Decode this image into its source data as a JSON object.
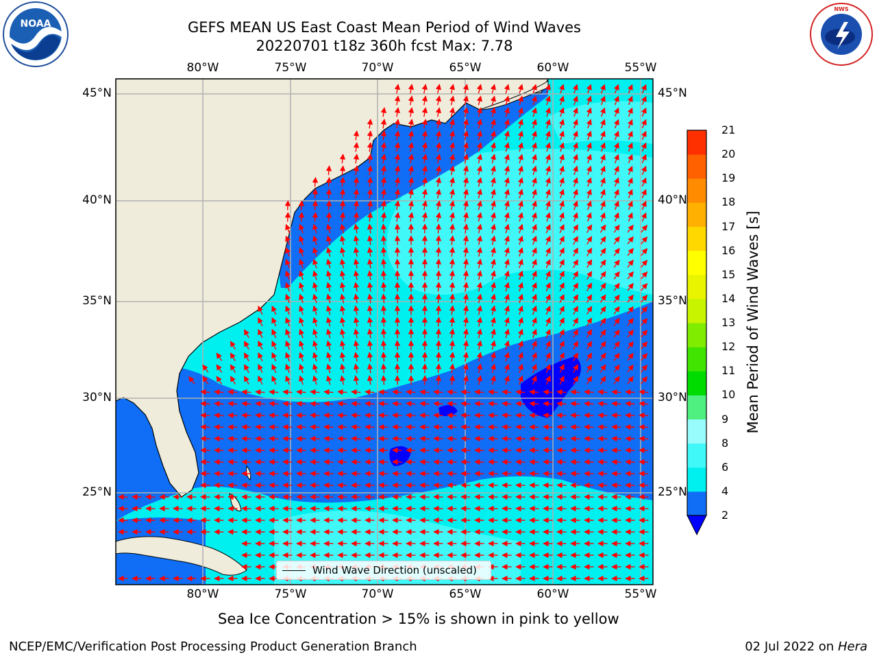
{
  "header": {
    "title_line1": "GEFS MEAN US East Coast Mean Period of Wind Waves",
    "title_line2": "20220701 t18z 360h fcst   Max: 7.78"
  },
  "logos": {
    "left": {
      "name": "noaa-logo",
      "text": "NOAA"
    },
    "right": {
      "name": "national-weather-service-logo",
      "text": "NATIONAL WEATHER SERVICE"
    }
  },
  "map": {
    "lon_ticks": [
      "80°W",
      "75°W",
      "70°W",
      "65°W",
      "60°W",
      "55°W"
    ],
    "lat_ticks": [
      "45°N",
      "40°N",
      "35°N",
      "30°N",
      "25°N"
    ],
    "colors": {
      "land": "#efecdc",
      "coast": "#000000",
      "grid": "#b0b0b0",
      "arrow": "#ff0000"
    },
    "legend": {
      "label": "Wind Wave Direction (unscaled)"
    }
  },
  "colorbar": {
    "title": "Mean Period of Wind Waves [s]",
    "levels": [
      2,
      4,
      6,
      8,
      9,
      10,
      11,
      12,
      13,
      14,
      15,
      16,
      17,
      18,
      19,
      20,
      21
    ],
    "labels": [
      "2",
      "4",
      "6",
      "8",
      "9",
      "10",
      "11",
      "12",
      "13",
      "14",
      "15",
      "16",
      "17",
      "18",
      "19",
      "20",
      "21"
    ],
    "colors": [
      "#0f6ef5",
      "#00f0f0",
      "#40f8f8",
      "#98fcfc",
      "#50f080",
      "#00dc00",
      "#40e400",
      "#80ec00",
      "#c8f400",
      "#e8f400",
      "#ffff00",
      "#ffd800",
      "#ffb000",
      "#ff8c00",
      "#ff6000",
      "#ff3000",
      "#ff0000"
    ],
    "under_color": "#0000ff"
  },
  "footer": {
    "note": "Sea Ice Concentration > 15% is shown in pink to yellow",
    "credit": "NCEP/EMC/Verification Post Processing Product Generation Branch",
    "date": "02 Jul 2022 on ",
    "machine": "Hera"
  }
}
